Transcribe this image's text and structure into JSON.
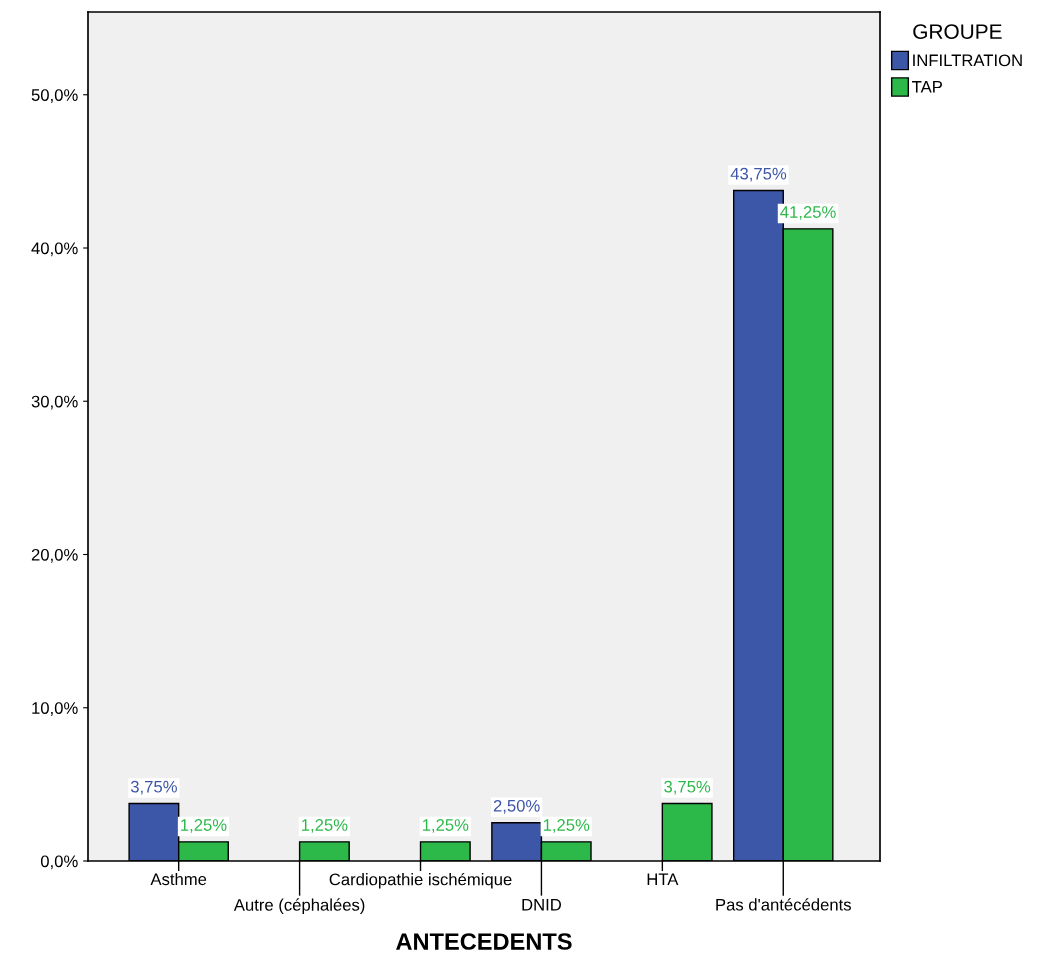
{
  "chart_data": {
    "type": "bar",
    "xlabel": "ANTECEDENTS",
    "categories": [
      "Asthme",
      "Autre (céphalées)",
      "Cardiopathie ischémique",
      "DNID",
      "HTA",
      "Pas d'antécédents"
    ],
    "series": [
      {
        "name": "INFILTRATION",
        "color": "#3c56a8",
        "values": [
          3.75,
          null,
          null,
          2.5,
          null,
          43.75
        ],
        "value_labels": [
          "3,75%",
          null,
          null,
          "2,50%",
          null,
          "43,75%"
        ]
      },
      {
        "name": "TAP",
        "color": "#2db84a",
        "values": [
          1.25,
          1.25,
          1.25,
          1.25,
          3.75,
          41.25
        ],
        "value_labels": [
          "1,25%",
          "1,25%",
          "1,25%",
          "1,25%",
          "3,75%",
          "41,25%"
        ]
      }
    ],
    "ylim": [
      0,
      55.4
    ],
    "yticks": [
      {
        "value": 0,
        "label": "0,0%"
      },
      {
        "value": 10,
        "label": "10,0%"
      },
      {
        "value": 20,
        "label": "20,0%"
      },
      {
        "value": 30,
        "label": "30,0%"
      },
      {
        "value": 40,
        "label": "40,0%"
      },
      {
        "value": 50,
        "label": "50,0%"
      }
    ],
    "legend": "top right",
    "legend_title": "GROUPE",
    "grid": false
  }
}
